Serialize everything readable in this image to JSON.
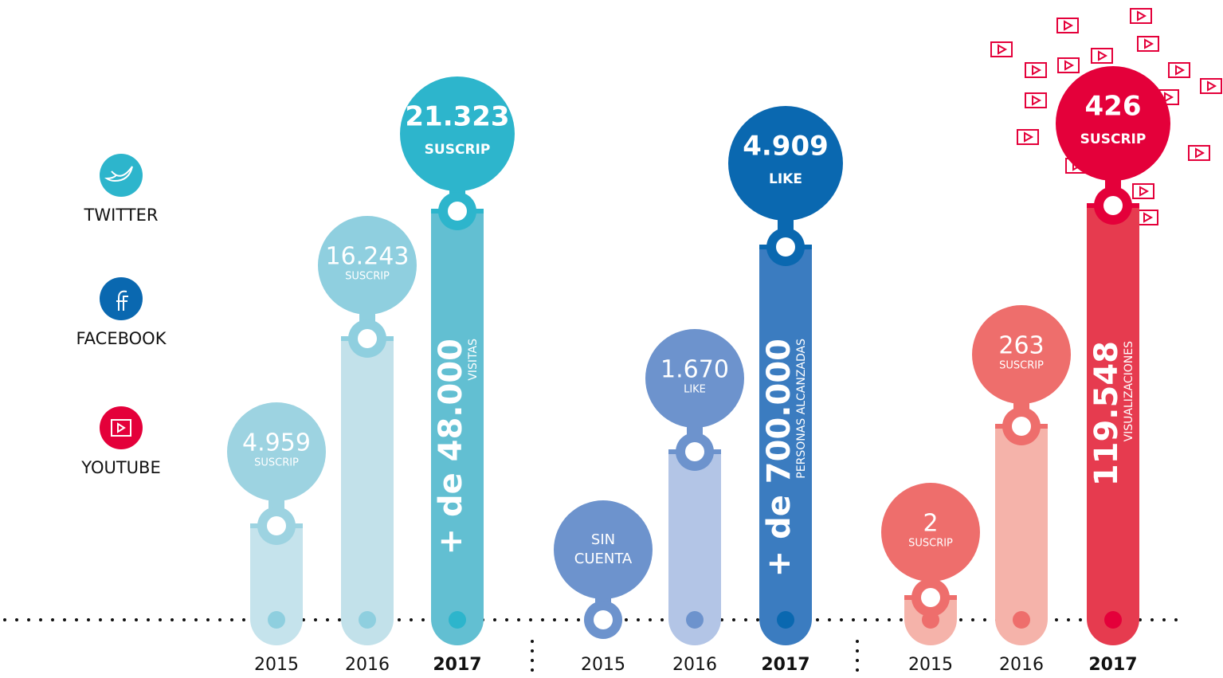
{
  "legend": [
    {
      "label": "TWITTER"
    },
    {
      "label": "FACEBOOK"
    },
    {
      "label": "YOUTUBE"
    }
  ],
  "groups": [
    {
      "bars": [
        {
          "year": "2015",
          "value": "4.959",
          "unit": "SUSCRIP"
        },
        {
          "year": "2016",
          "value": "16.243",
          "unit": "SUSCRIP"
        },
        {
          "year": "2017",
          "value": "21.323",
          "unit": "SUSCRIP",
          "total": "+ de 48.000",
          "total_unit": "VISITAS"
        }
      ]
    },
    {
      "bars": [
        {
          "year": "2015",
          "value": "SIN",
          "unit": "CUENTA"
        },
        {
          "year": "2016",
          "value": "1.670",
          "unit": "LIKE"
        },
        {
          "year": "2017",
          "value": "4.909",
          "unit": "LIKE",
          "total": "+ de 700.000",
          "total_unit": "PERSONAS ALCANZADAS"
        }
      ]
    },
    {
      "bars": [
        {
          "year": "2015",
          "value": "2",
          "unit": "SUSCRIP"
        },
        {
          "year": "2016",
          "value": "263",
          "unit": "SUSCRIP"
        },
        {
          "year": "2017",
          "value": "426",
          "unit": "SUSCRIP",
          "total": "119.548",
          "total_unit": "VISUALIZACIONES"
        }
      ]
    }
  ]
}
